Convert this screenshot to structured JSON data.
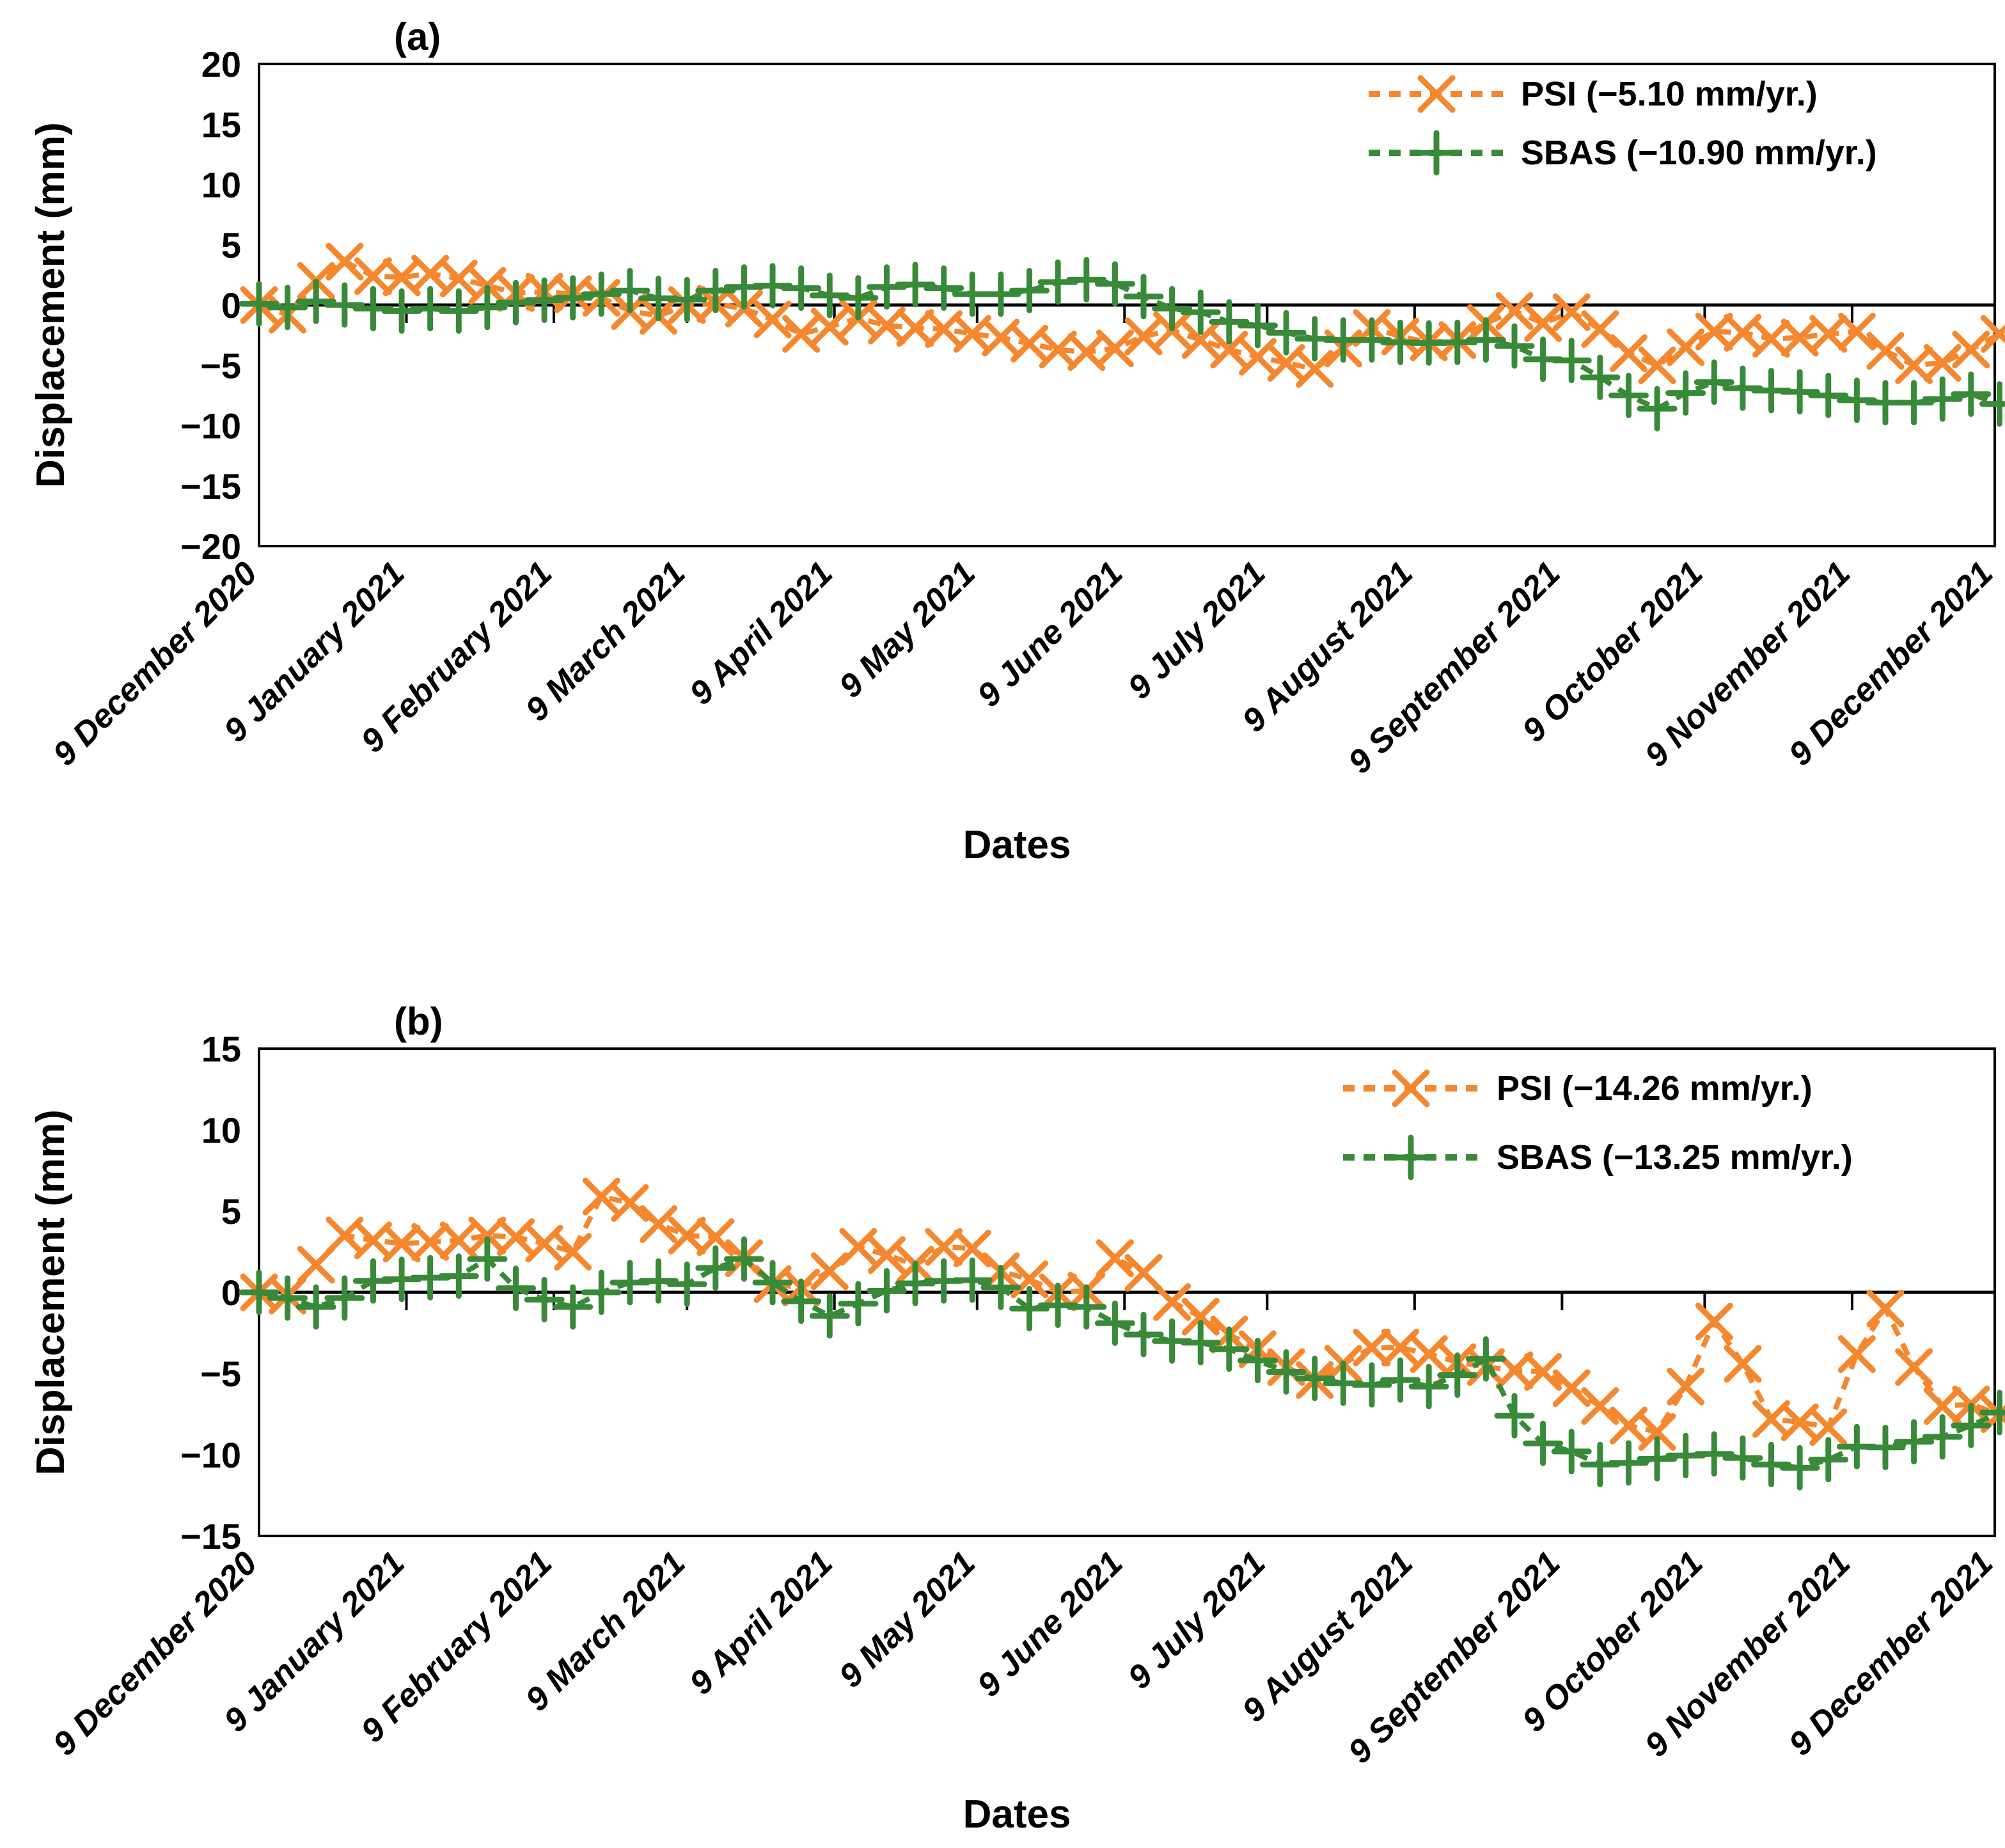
{
  "page": {
    "background": "#FFFFFF"
  },
  "colors": {
    "psi_orange": "#F5872E",
    "sbas_green": "#388A38",
    "axis_black": "#000000"
  },
  "chart_data": [
    {
      "type": "line",
      "panel_label": "(a)",
      "ylabel": "Displacement (mm)",
      "xlabel": "Dates",
      "ylim": [
        -20,
        20
      ],
      "ytick_step": 5,
      "grid": false,
      "legend_position": "top-right-inside",
      "point_interval_days": 6,
      "x_total_days": 365,
      "x_month_day_offsets": [
        0,
        31,
        62,
        90,
        121,
        151,
        182,
        212,
        243,
        274,
        304,
        335,
        365
      ],
      "x_tick_labels": [
        "9 December 2020",
        "9 January 2021",
        "9 February 2021",
        "9 March 2021",
        "9 April 2021",
        "9 May 2021",
        "9 June 2021",
        "9 July 2021",
        "9 August 2021",
        "9 September 2021",
        "9 October 2021",
        "9 November 2021",
        "9 December 2021"
      ],
      "legend": [
        {
          "label": "PSI (−5.10 mm/yr.)"
        },
        {
          "label": "SBAS (−10.90 mm/yr.)"
        }
      ],
      "series": [
        {
          "name": "PSI",
          "rate_mm_per_yr": -5.1,
          "color": "#F5872E",
          "marker": "x",
          "linestyle": "dashed",
          "values": [
            0.0,
            -0.8,
            2.0,
            3.6,
            2.4,
            2.3,
            2.6,
            2.2,
            1.6,
            1.0,
            1.1,
            0.9,
            0.6,
            -0.5,
            -0.9,
            0.0,
            0.1,
            -0.3,
            -1.2,
            -2.4,
            -1.8,
            -1.1,
            -1.7,
            -1.9,
            -2.0,
            -2.4,
            -2.7,
            -3.2,
            -3.7,
            -3.9,
            -3.6,
            -2.6,
            -2.1,
            -2.9,
            -3.7,
            -4.3,
            -4.8,
            -5.3,
            -3.6,
            -1.9,
            -2.6,
            -3.1,
            -2.9,
            -1.5,
            -0.5,
            -1.5,
            -0.6,
            -2.0,
            -4.0,
            -5.0,
            -3.5,
            -2.2,
            -2.3,
            -2.8,
            -2.7,
            -2.4,
            -2.2,
            -3.8,
            -5.0,
            -4.8,
            -3.7,
            -2.4
          ]
        },
        {
          "name": "SBAS",
          "rate_mm_per_yr": -10.9,
          "color": "#388A38",
          "marker": "+",
          "linestyle": "dashed",
          "values": [
            0.1,
            -0.2,
            0.3,
            0.0,
            -0.3,
            -0.5,
            -0.3,
            -0.5,
            -0.2,
            0.2,
            0.4,
            0.6,
            0.9,
            1.2,
            0.55,
            0.45,
            1.2,
            1.5,
            1.6,
            1.4,
            0.8,
            0.6,
            1.5,
            1.7,
            1.4,
            0.9,
            0.9,
            1.2,
            1.9,
            2.1,
            1.75,
            0.7,
            -0.3,
            -0.6,
            -1.4,
            -1.7,
            -2.3,
            -2.8,
            -2.9,
            -2.9,
            -3.1,
            -3.15,
            -3.1,
            -2.9,
            -3.4,
            -4.5,
            -4.6,
            -6.0,
            -7.5,
            -8.6,
            -7.3,
            -6.4,
            -6.9,
            -7.1,
            -7.2,
            -7.5,
            -7.9,
            -8.1,
            -8.1,
            -7.8,
            -7.4,
            -8.2
          ]
        }
      ]
    },
    {
      "type": "line",
      "panel_label": "(b)",
      "ylabel": "Displacement (mm)",
      "xlabel": "Dates",
      "ylim": [
        -15,
        15
      ],
      "ytick_step": 5,
      "grid": false,
      "legend_position": "top-right-inside",
      "point_interval_days": 6,
      "x_total_days": 365,
      "x_month_day_offsets": [
        0,
        31,
        62,
        90,
        121,
        151,
        182,
        212,
        243,
        274,
        304,
        335,
        365
      ],
      "x_tick_labels": [
        "9 December 2020",
        "9 January 2021",
        "9 February 2021",
        "9 March 2021",
        "9 April 2021",
        "9 May 2021",
        "9 June 2021",
        "9 July 2021",
        "9 August 2021",
        "9 September 2021",
        "9 October 2021",
        "9 November 2021",
        "9 December 2021"
      ],
      "legend": [
        {
          "label": "PSI (−14.26 mm/yr.)"
        },
        {
          "label": "SBAS (−13.25 mm/yr.)"
        }
      ],
      "series": [
        {
          "name": "PSI",
          "rate_mm_per_yr": -14.26,
          "color": "#F5872E",
          "marker": "x",
          "linestyle": "dashed",
          "values": [
            0.0,
            -0.2,
            1.7,
            3.5,
            3.2,
            3.0,
            3.1,
            3.2,
            3.5,
            3.4,
            3.0,
            2.5,
            5.9,
            5.5,
            4.2,
            3.5,
            3.4,
            2.1,
            0.5,
            0.3,
            1.3,
            2.8,
            2.3,
            1.7,
            2.8,
            2.7,
            1.3,
            0.8,
            0.0,
            0.1,
            2.1,
            1.2,
            -0.6,
            -1.5,
            -2.6,
            -3.5,
            -4.6,
            -5.4,
            -4.4,
            -3.4,
            -3.4,
            -3.8,
            -4.3,
            -4.6,
            -4.8,
            -4.9,
            -5.9,
            -7.0,
            -8.2,
            -8.6,
            -5.8,
            -1.8,
            -4.4,
            -7.8,
            -8.0,
            -8.3,
            -3.8,
            -1.0,
            -4.6,
            -7.0,
            -6.9,
            -7.5
          ]
        },
        {
          "name": "SBAS",
          "rate_mm_per_yr": -13.25,
          "color": "#388A38",
          "marker": "+",
          "linestyle": "dashed",
          "values": [
            0.0,
            -0.35,
            -0.9,
            -0.35,
            0.7,
            0.8,
            0.9,
            1.0,
            2.05,
            0.25,
            -0.45,
            -0.9,
            0.0,
            0.6,
            0.7,
            0.5,
            1.5,
            2.05,
            0.6,
            -0.55,
            -1.45,
            -0.7,
            0.1,
            0.55,
            0.7,
            0.75,
            0.3,
            -1.0,
            -0.8,
            -0.9,
            -1.9,
            -2.6,
            -3.0,
            -3.1,
            -3.5,
            -4.2,
            -4.9,
            -5.3,
            -5.6,
            -5.7,
            -5.4,
            -5.8,
            -5.1,
            -4.1,
            -7.6,
            -9.3,
            -9.8,
            -10.6,
            -10.5,
            -10.25,
            -10.05,
            -9.95,
            -10.2,
            -10.6,
            -10.8,
            -10.3,
            -9.5,
            -9.55,
            -9.2,
            -8.9,
            -8.2,
            -7.4
          ]
        }
      ]
    }
  ]
}
